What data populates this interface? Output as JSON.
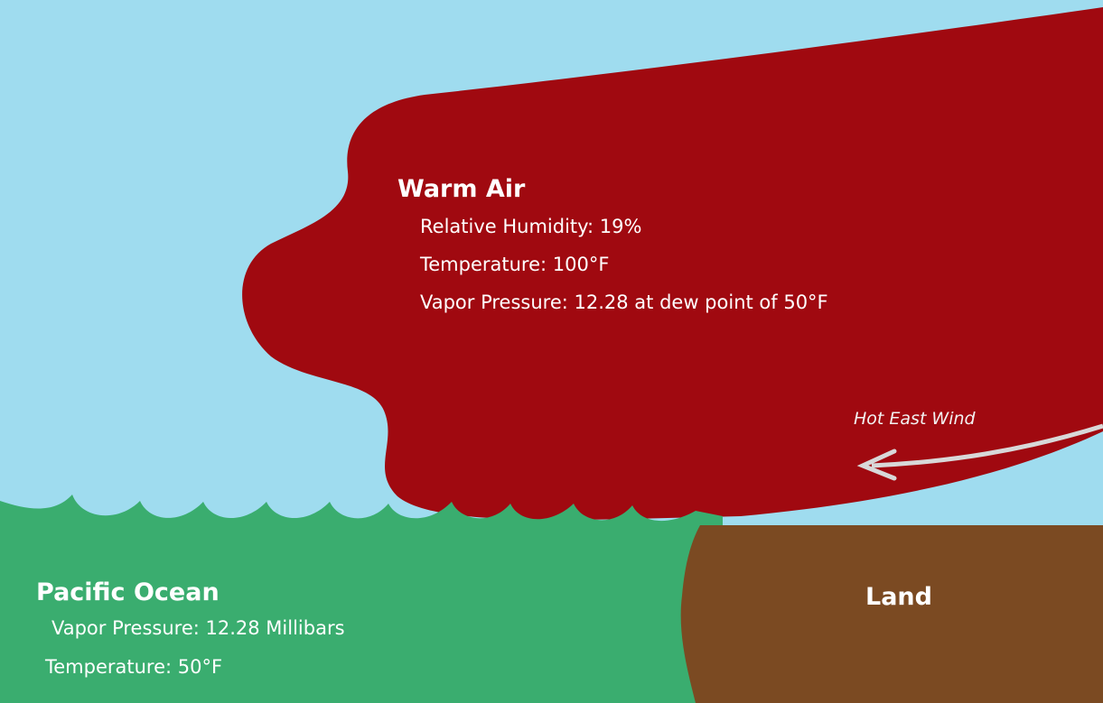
{
  "warm_air": {
    "title": "Warm Air",
    "lines": [
      "Relative Humidity: 19%",
      "Temperature:  100°F",
      "Vapor Pressure: 12.28 at dew point of 50°F"
    ]
  },
  "wind": {
    "label": "Hot East Wind"
  },
  "ocean": {
    "title": "Pacific Ocean",
    "lines": [
      "Vapor Pressure: 12.28 Millibars",
      "Temperature:  50°F"
    ]
  },
  "land": {
    "title": "Land"
  }
}
